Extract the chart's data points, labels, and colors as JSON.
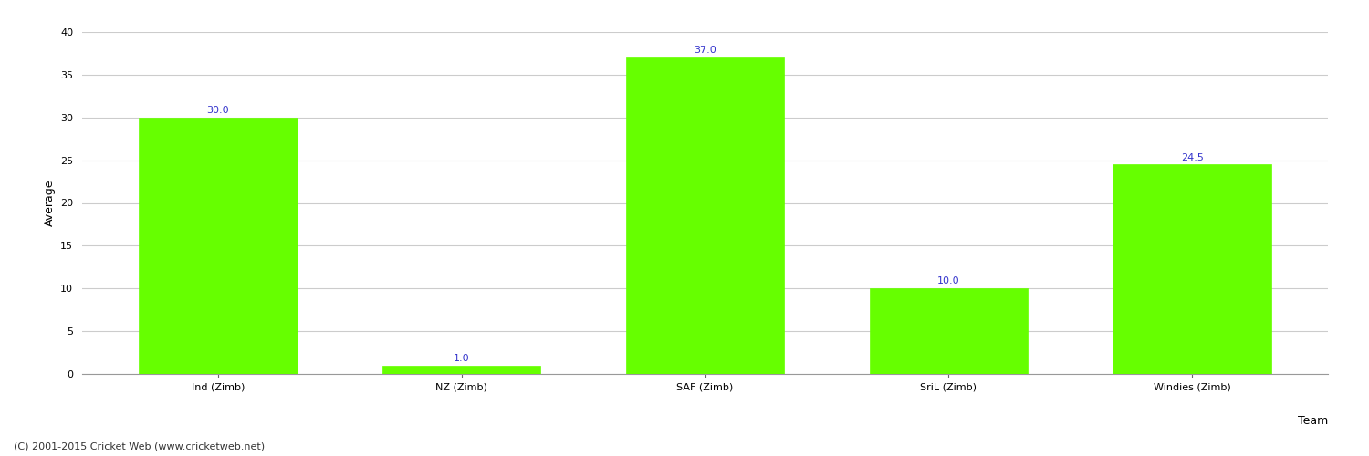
{
  "categories": [
    "Ind (Zimb)",
    "NZ (Zimb)",
    "SAF (Zimb)",
    "SriL (Zimb)",
    "Windies (Zimb)"
  ],
  "values": [
    30.0,
    1.0,
    37.0,
    10.0,
    24.5
  ],
  "bar_color": "#66ff00",
  "bar_edge_color": "#66ff00",
  "value_label_color": "#3333cc",
  "value_label_fontsize": 8,
  "xlabel": "Team",
  "ylabel": "Average",
  "ylim": [
    0,
    40
  ],
  "yticks": [
    0,
    5,
    10,
    15,
    20,
    25,
    30,
    35,
    40
  ],
  "grid_color": "#cccccc",
  "background_color": "#ffffff",
  "footer_text": "(C) 2001-2015 Cricket Web (www.cricketweb.net)",
  "footer_fontsize": 8,
  "footer_color": "#333333",
  "xlabel_fontsize": 9,
  "ylabel_fontsize": 9,
  "tick_fontsize": 8,
  "bar_width": 0.65
}
